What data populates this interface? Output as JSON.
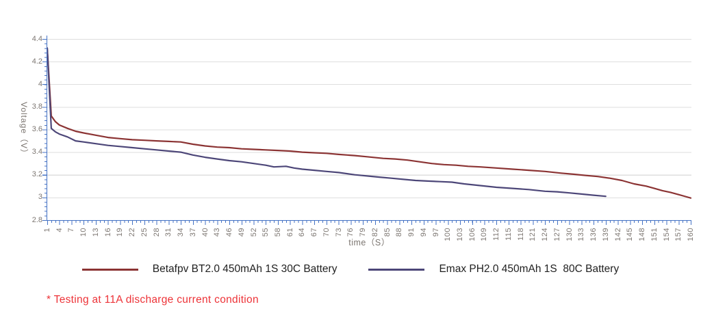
{
  "colors": {
    "axis": "#4472c4",
    "gridline": "#dedede",
    "tick_label": "#7c7671",
    "legend_text": "#1f1f1f",
    "footnote": "#ed3237",
    "series_betafpv": "#8b3333",
    "series_emax": "#4c4678"
  },
  "footnote": {
    "text": "* Testing at 11A discharge current condition"
  },
  "chart_data": {
    "type": "line",
    "xlabel": "time（S）",
    "ylabel": "Voltage（V）",
    "xlim": [
      1,
      160
    ],
    "ylim": [
      2.8,
      4.4
    ],
    "grid": true,
    "legend_position": "bottom",
    "x_tick_step": 3,
    "x_ticks": [
      1,
      4,
      7,
      10,
      13,
      16,
      19,
      22,
      25,
      28,
      31,
      34,
      37,
      40,
      43,
      46,
      49,
      52,
      55,
      58,
      61,
      64,
      67,
      70,
      73,
      76,
      79,
      82,
      85,
      88,
      91,
      94,
      97,
      100,
      103,
      106,
      109,
      112,
      115,
      118,
      121,
      124,
      127,
      130,
      133,
      136,
      139,
      142,
      145,
      148,
      151,
      154,
      157,
      160
    ],
    "y_tick_labels": [
      "4.4",
      "4.2",
      "4",
      "3.8",
      "3.6",
      "3.4",
      "3.2",
      "3",
      "2.8"
    ],
    "y_tick_values": [
      4.4,
      4.2,
      4.0,
      3.8,
      3.6,
      3.4,
      3.2,
      3.0,
      2.8
    ],
    "series": [
      {
        "name": "Betafpv BT2.0 450mAh 1S 30C Battery",
        "color": "#8b3333",
        "points": [
          [
            1,
            4.32
          ],
          [
            2,
            3.72
          ],
          [
            3,
            3.67
          ],
          [
            4,
            3.64
          ],
          [
            6,
            3.61
          ],
          [
            8,
            3.585
          ],
          [
            10,
            3.57
          ],
          [
            13,
            3.55
          ],
          [
            16,
            3.53
          ],
          [
            19,
            3.52
          ],
          [
            22,
            3.51
          ],
          [
            25,
            3.505
          ],
          [
            28,
            3.5
          ],
          [
            31,
            3.495
          ],
          [
            34,
            3.49
          ],
          [
            37,
            3.47
          ],
          [
            40,
            3.455
          ],
          [
            43,
            3.445
          ],
          [
            46,
            3.44
          ],
          [
            49,
            3.43
          ],
          [
            52,
            3.425
          ],
          [
            55,
            3.42
          ],
          [
            58,
            3.415
          ],
          [
            61,
            3.41
          ],
          [
            64,
            3.4
          ],
          [
            67,
            3.395
          ],
          [
            70,
            3.39
          ],
          [
            73,
            3.38
          ],
          [
            77,
            3.37
          ],
          [
            80,
            3.36
          ],
          [
            84,
            3.345
          ],
          [
            87,
            3.34
          ],
          [
            90,
            3.33
          ],
          [
            93,
            3.315
          ],
          [
            96,
            3.3
          ],
          [
            99,
            3.29
          ],
          [
            102,
            3.285
          ],
          [
            105,
            3.275
          ],
          [
            108,
            3.27
          ],
          [
            112,
            3.26
          ],
          [
            116,
            3.25
          ],
          [
            120,
            3.24
          ],
          [
            124,
            3.23
          ],
          [
            128,
            3.215
          ],
          [
            131,
            3.205
          ],
          [
            134,
            3.195
          ],
          [
            137,
            3.185
          ],
          [
            140,
            3.17
          ],
          [
            143,
            3.15
          ],
          [
            146,
            3.12
          ],
          [
            149,
            3.1
          ],
          [
            151,
            3.08
          ],
          [
            153,
            3.06
          ],
          [
            155,
            3.045
          ],
          [
            157,
            3.025
          ],
          [
            159,
            3.005
          ],
          [
            160,
            2.995
          ]
        ]
      },
      {
        "name": "Emax PH2.0 450mAh 1S  80C Battery",
        "color": "#4c4678",
        "points": [
          [
            1,
            4.32
          ],
          [
            2,
            3.61
          ],
          [
            3,
            3.58
          ],
          [
            4,
            3.56
          ],
          [
            6,
            3.535
          ],
          [
            8,
            3.5
          ],
          [
            10,
            3.49
          ],
          [
            13,
            3.475
          ],
          [
            16,
            3.46
          ],
          [
            19,
            3.45
          ],
          [
            22,
            3.44
          ],
          [
            25,
            3.43
          ],
          [
            28,
            3.42
          ],
          [
            31,
            3.41
          ],
          [
            34,
            3.4
          ],
          [
            37,
            3.375
          ],
          [
            40,
            3.355
          ],
          [
            43,
            3.34
          ],
          [
            46,
            3.325
          ],
          [
            49,
            3.315
          ],
          [
            52,
            3.3
          ],
          [
            55,
            3.285
          ],
          [
            57,
            3.27
          ],
          [
            60,
            3.275
          ],
          [
            62,
            3.26
          ],
          [
            64,
            3.25
          ],
          [
            67,
            3.24
          ],
          [
            70,
            3.23
          ],
          [
            73,
            3.22
          ],
          [
            77,
            3.2
          ],
          [
            80,
            3.19
          ],
          [
            83,
            3.18
          ],
          [
            86,
            3.17
          ],
          [
            89,
            3.16
          ],
          [
            92,
            3.15
          ],
          [
            95,
            3.145
          ],
          [
            98,
            3.14
          ],
          [
            101,
            3.135
          ],
          [
            104,
            3.12
          ],
          [
            108,
            3.105
          ],
          [
            112,
            3.09
          ],
          [
            116,
            3.08
          ],
          [
            120,
            3.07
          ],
          [
            124,
            3.055
          ],
          [
            127,
            3.05
          ],
          [
            130,
            3.04
          ],
          [
            133,
            3.03
          ],
          [
            136,
            3.02
          ],
          [
            139,
            3.01
          ]
        ]
      }
    ]
  }
}
